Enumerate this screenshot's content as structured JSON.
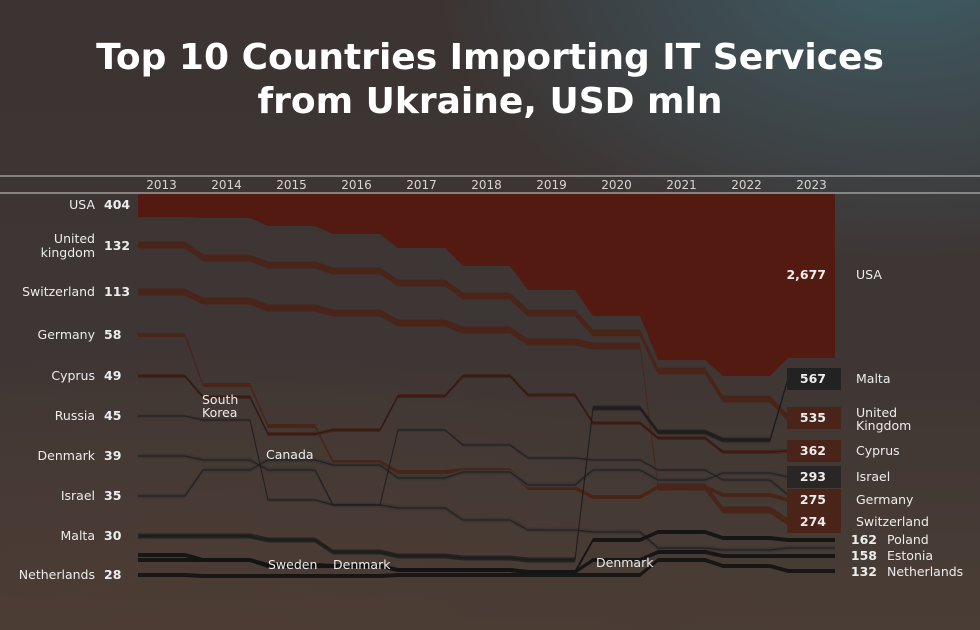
{
  "title_line1": "Top 10 Countries Importing IT Services",
  "title_line2": "from Ukraine, USD mln",
  "chart_data": {
    "type": "bump",
    "title": "Top 10 Countries Importing IT Services from Ukraine, USD mln",
    "unit": "USD mln",
    "years": [
      "2013",
      "2014",
      "2015",
      "2016",
      "2017",
      "2018",
      "2019",
      "2020",
      "2021",
      "2022",
      "2023"
    ],
    "first_year": [
      {
        "country": "USA",
        "value": 404
      },
      {
        "country": "United kingdom",
        "value": 132
      },
      {
        "country": "Switzerland",
        "value": 113
      },
      {
        "country": "Germany",
        "value": 58
      },
      {
        "country": "Cyprus",
        "value": 49
      },
      {
        "country": "Russia",
        "value": 45
      },
      {
        "country": "Denmark",
        "value": 39
      },
      {
        "country": "Israel",
        "value": 35
      },
      {
        "country": "Malta",
        "value": 30
      },
      {
        "country": "Netherlands",
        "value": 28
      }
    ],
    "last_year": [
      {
        "country": "USA",
        "value": 2677,
        "label": "2,677"
      },
      {
        "country": "Malta",
        "value": 567,
        "label": "567"
      },
      {
        "country": "United Kingdom",
        "value": 535,
        "label": "535"
      },
      {
        "country": "Cyprus",
        "value": 362,
        "label": "362"
      },
      {
        "country": "Israel",
        "value": 293,
        "label": "293"
      },
      {
        "country": "Germany",
        "value": 275,
        "label": "275"
      },
      {
        "country": "Switzerland",
        "value": 274,
        "label": "274"
      },
      {
        "country": "Poland",
        "value": 162,
        "label": "162"
      },
      {
        "country": "Estonia",
        "value": 158,
        "label": "158"
      },
      {
        "country": "Netherlands",
        "value": 132,
        "label": "132"
      }
    ],
    "inline_labels": [
      "South Korea",
      "Canada",
      "Sweden",
      "Denmark",
      "Denmark"
    ],
    "colors": {
      "usa": "#521a10",
      "malta": "#222222",
      "netherlands": "#141414",
      "grey_band": "#3c3634",
      "red_band": "#4a2418",
      "line": "#cfcfcf"
    }
  }
}
